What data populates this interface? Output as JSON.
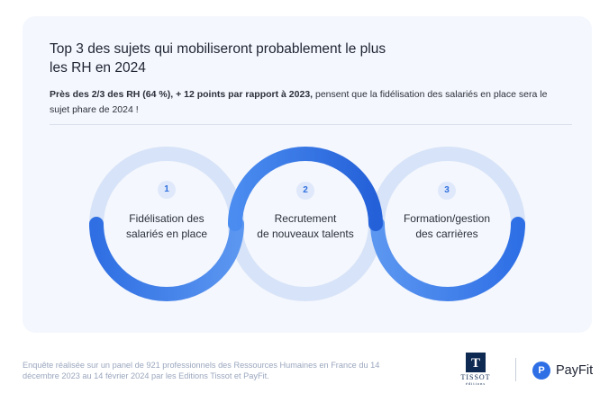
{
  "card": {
    "title": "Top 3 des sujets qui mobiliseront probablement le plus\nles RH en 2024",
    "intro_bold": "Près des 2/3 des RH (64 %), + 12 points par rapport à 2023,",
    "intro_rest": " pensent que la fidélisation des salariés en place sera le sujet phare de 2024 !"
  },
  "topics": [
    {
      "number": "1",
      "label": "Fidélisation des\nsalariés en place"
    },
    {
      "number": "2",
      "label": "Recrutement\nde nouveaux talents"
    },
    {
      "number": "3",
      "label": "Formation/gestion\ndes carrières"
    }
  ],
  "footer": {
    "note": "Enquête réalisée sur un panel de 921 professionnels des Ressources Humaines en France du 14 décembre 2023 au 14 février 2024 par les Editions Tissot et PayFit."
  },
  "logos": {
    "tissot_letter": "T",
    "tissot_name": "TISSOT",
    "tissot_sub": "éditions",
    "payfit_icon": "P",
    "payfit_name": "PayFit"
  },
  "colors": {
    "accent": "#2e6fe6",
    "ring_light": "#d7e3f8",
    "card_bg": "#f4f7fd"
  }
}
